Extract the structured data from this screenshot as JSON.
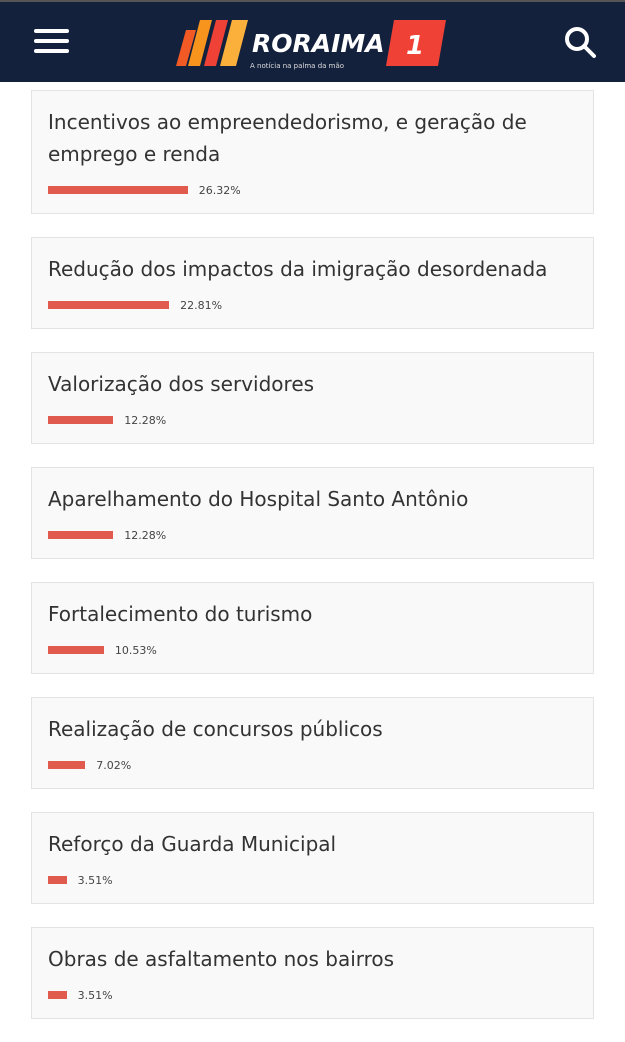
{
  "header": {
    "logo_text": "RORAIMA",
    "logo_number": "1",
    "tagline": "A notícia na palma da mão"
  },
  "poll": {
    "options": [
      {
        "label": "Incentivos ao empreendedorismo, e geração de emprego e renda",
        "value": 26.32,
        "value_label": "26.32%"
      },
      {
        "label": "Redução dos impactos da imigração desordenada",
        "value": 22.81,
        "value_label": "22.81%"
      },
      {
        "label": "Valorização dos servidores",
        "value": 12.28,
        "value_label": "12.28%"
      },
      {
        "label": "Aparelhamento do Hospital Santo Antônio",
        "value": 12.28,
        "value_label": "12.28%"
      },
      {
        "label": "Fortalecimento do turismo",
        "value": 10.53,
        "value_label": "10.53%"
      },
      {
        "label": "Realização de concursos públicos",
        "value": 7.02,
        "value_label": "7.02%"
      },
      {
        "label": "Reforço da Guarda Municipal",
        "value": 3.51,
        "value_label": "3.51%"
      },
      {
        "label": "Obras de asfaltamento nos bairros",
        "value": 3.51,
        "value_label": "3.51%"
      }
    ]
  }
}
